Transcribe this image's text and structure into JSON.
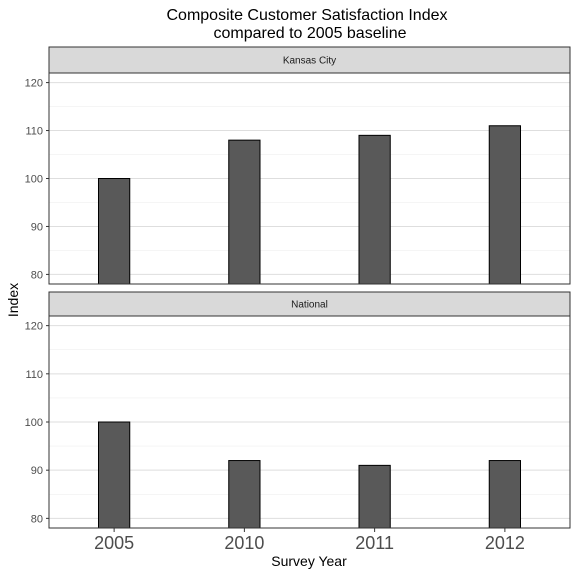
{
  "chart_data": {
    "type": "bar",
    "title_line1": "Composite Customer Satisfaction Index",
    "title_line2": "compared to 2005 baseline",
    "xlabel": "Survey Year",
    "ylabel": "Index",
    "categories": [
      "2005",
      "2010",
      "2011",
      "2012"
    ],
    "ylim": [
      78,
      122
    ],
    "yticks": [
      80,
      90,
      100,
      110,
      120
    ],
    "grid": true,
    "panels": [
      {
        "name": "Kansas City",
        "values": [
          100,
          108,
          109,
          111
        ]
      },
      {
        "name": "National",
        "values": [
          100,
          92,
          91,
          92
        ]
      }
    ]
  },
  "colors": {
    "bar_fill": "#595959",
    "bar_stroke": "#000000",
    "strip_fill": "#d9d9d9",
    "grid_major": "#dedede",
    "grid_minor": "#efefef"
  }
}
